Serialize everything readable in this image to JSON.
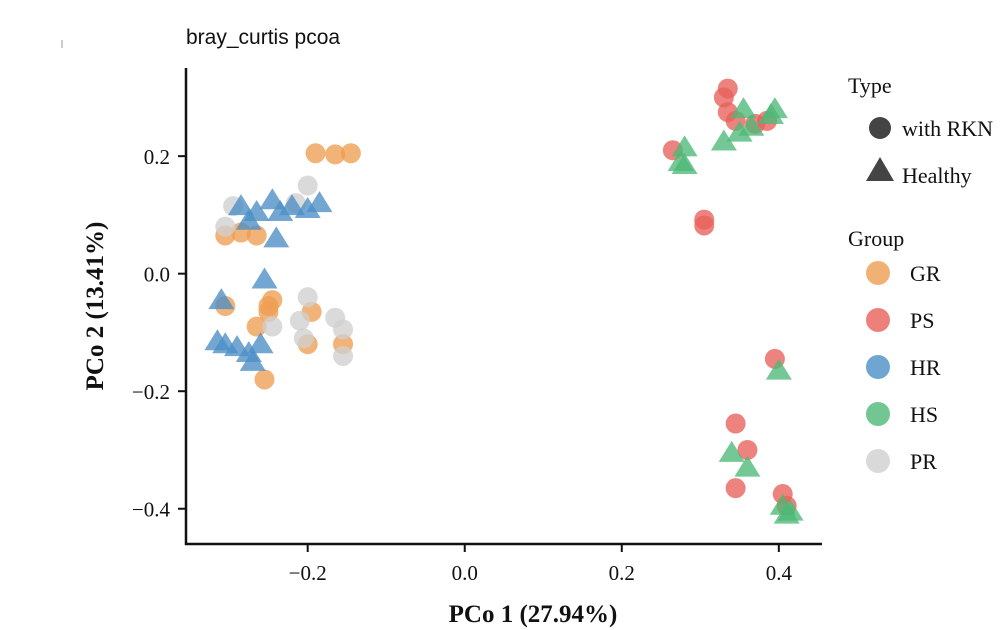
{
  "chart_data": {
    "type": "scatter",
    "title": "bray_curtis pcoa",
    "xlabel": "PCo 1 (27.94%)",
    "ylabel": "PCo 2 (13.41%)",
    "xlim": [
      -0.355,
      0.455
    ],
    "ylim": [
      -0.46,
      0.35
    ],
    "x_ticks": [
      -0.2,
      0.0,
      0.2,
      0.4
    ],
    "x_tick_labels": [
      "−0.2",
      "0.0",
      "0.2",
      "0.4"
    ],
    "y_ticks": [
      0.2,
      0.0,
      -0.2,
      -0.4
    ],
    "y_tick_labels": [
      "0.2",
      "0.0",
      "−0.2",
      "−0.4"
    ],
    "grid": false,
    "legend_placement": "right",
    "legend": {
      "type_title": "Type",
      "type_items": [
        {
          "label": "with RKN",
          "shape": "circle"
        },
        {
          "label": "Healthy",
          "shape": "triangle"
        }
      ],
      "group_title": "Group",
      "group_items": [
        {
          "label": "GR",
          "color": "#EE9D52"
        },
        {
          "label": "PS",
          "color": "#E8605A"
        },
        {
          "label": "HR",
          "color": "#4B8EC5"
        },
        {
          "label": "HS",
          "color": "#4DB877"
        },
        {
          "label": "PR",
          "color": "#CFCFCF"
        }
      ]
    },
    "series": [
      {
        "group": "GR",
        "shape": "circle",
        "color": "#EE9D52",
        "points": [
          [
            -0.19,
            0.205
          ],
          [
            -0.165,
            0.203
          ],
          [
            -0.145,
            0.205
          ],
          [
            -0.305,
            0.065
          ],
          [
            -0.285,
            0.07
          ],
          [
            -0.265,
            0.065
          ],
          [
            -0.305,
            -0.055
          ],
          [
            -0.245,
            -0.045
          ],
          [
            -0.25,
            -0.055
          ],
          [
            -0.25,
            -0.065
          ],
          [
            -0.265,
            -0.09
          ],
          [
            -0.195,
            -0.065
          ],
          [
            -0.2,
            -0.12
          ],
          [
            -0.155,
            -0.12
          ],
          [
            -0.255,
            -0.18
          ]
        ]
      },
      {
        "group": "PR",
        "shape": "circle",
        "color": "#CFCFCF",
        "points": [
          [
            -0.2,
            0.15
          ],
          [
            -0.215,
            0.12
          ],
          [
            -0.295,
            0.115
          ],
          [
            -0.305,
            0.08
          ],
          [
            -0.245,
            -0.09
          ],
          [
            -0.21,
            -0.08
          ],
          [
            -0.2,
            -0.04
          ],
          [
            -0.205,
            -0.11
          ],
          [
            -0.165,
            -0.075
          ],
          [
            -0.155,
            -0.095
          ],
          [
            -0.155,
            -0.14
          ]
        ]
      },
      {
        "group": "HR",
        "shape": "triangle",
        "color": "#4B8EC5",
        "points": [
          [
            -0.285,
            0.115
          ],
          [
            -0.265,
            0.105
          ],
          [
            -0.275,
            0.09
          ],
          [
            -0.245,
            0.125
          ],
          [
            -0.235,
            0.105
          ],
          [
            -0.22,
            0.115
          ],
          [
            -0.2,
            0.11
          ],
          [
            -0.185,
            0.12
          ],
          [
            -0.24,
            0.06
          ],
          [
            -0.255,
            -0.01
          ],
          [
            -0.31,
            -0.045
          ],
          [
            -0.315,
            -0.115
          ],
          [
            -0.305,
            -0.12
          ],
          [
            -0.29,
            -0.125
          ],
          [
            -0.275,
            -0.135
          ],
          [
            -0.27,
            -0.15
          ],
          [
            -0.26,
            -0.12
          ]
        ]
      },
      {
        "group": "PS",
        "shape": "circle",
        "color": "#E8605A",
        "points": [
          [
            0.335,
            0.315
          ],
          [
            0.33,
            0.3
          ],
          [
            0.335,
            0.275
          ],
          [
            0.345,
            0.26
          ],
          [
            0.37,
            0.255
          ],
          [
            0.385,
            0.26
          ],
          [
            0.265,
            0.21
          ],
          [
            0.305,
            0.092
          ],
          [
            0.305,
            0.082
          ],
          [
            0.395,
            -0.145
          ],
          [
            0.345,
            -0.255
          ],
          [
            0.36,
            -0.3
          ],
          [
            0.345,
            -0.365
          ],
          [
            0.405,
            -0.375
          ],
          [
            0.41,
            -0.395
          ]
        ]
      },
      {
        "group": "HS",
        "shape": "triangle",
        "color": "#4DB877",
        "points": [
          [
            0.355,
            0.28
          ],
          [
            0.395,
            0.28
          ],
          [
            0.39,
            0.27
          ],
          [
            0.365,
            0.25
          ],
          [
            0.35,
            0.24
          ],
          [
            0.33,
            0.225
          ],
          [
            0.28,
            0.215
          ],
          [
            0.275,
            0.19
          ],
          [
            0.28,
            0.185
          ],
          [
            0.4,
            -0.165
          ],
          [
            0.34,
            -0.305
          ],
          [
            0.36,
            -0.33
          ],
          [
            0.405,
            -0.395
          ],
          [
            0.415,
            -0.405
          ],
          [
            0.41,
            -0.41
          ]
        ]
      }
    ]
  }
}
